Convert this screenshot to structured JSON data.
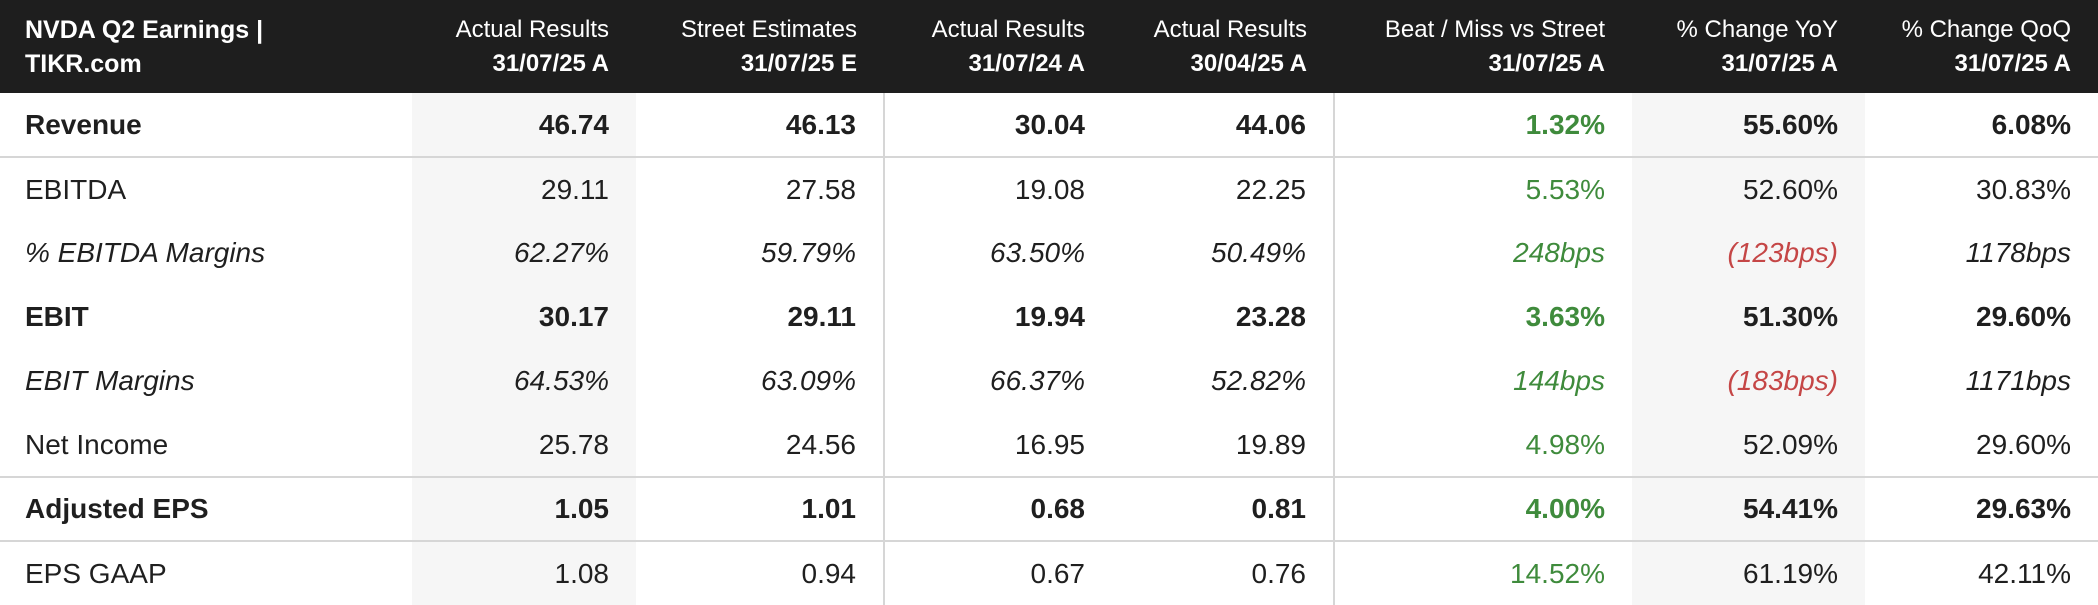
{
  "header": {
    "title": "NVDA Q2 Earnings | TIKR.com",
    "columns": [
      {
        "label": "Actual Results",
        "date": "31/07/25 A"
      },
      {
        "label": "Street Estimates",
        "date": "31/07/25 E"
      },
      {
        "label": "Actual Results",
        "date": "31/07/24 A"
      },
      {
        "label": "Actual Results",
        "date": "30/04/25 A"
      },
      {
        "label": "Beat / Miss vs Street",
        "date": "31/07/25 A"
      },
      {
        "label": "% Change YoY",
        "date": "31/07/25 A"
      },
      {
        "label": "% Change QoQ",
        "date": "31/07/25 A"
      }
    ]
  },
  "rows": [
    {
      "label": "Revenue",
      "values": [
        "46.74",
        "46.13",
        "30.04",
        "44.06",
        "1.32%",
        "55.60%",
        "6.08%"
      ]
    },
    {
      "label": "EBITDA",
      "values": [
        "29.11",
        "27.58",
        "19.08",
        "22.25",
        "5.53%",
        "52.60%",
        "30.83%"
      ]
    },
    {
      "label": "% EBITDA Margins",
      "values": [
        "62.27%",
        "59.79%",
        "63.50%",
        "50.49%",
        "248bps",
        "(123bps)",
        "1178bps"
      ]
    },
    {
      "label": "EBIT",
      "values": [
        "30.17",
        "29.11",
        "19.94",
        "23.28",
        "3.63%",
        "51.30%",
        "29.60%"
      ]
    },
    {
      "label": "EBIT Margins",
      "values": [
        "64.53%",
        "63.09%",
        "66.37%",
        "52.82%",
        "144bps",
        "(183bps)",
        "1171bps"
      ]
    },
    {
      "label": "Net Income",
      "values": [
        "25.78",
        "24.56",
        "16.95",
        "19.89",
        "4.98%",
        "52.09%",
        "29.60%"
      ]
    },
    {
      "label": "Adjusted EPS",
      "values": [
        "1.05",
        "1.01",
        "0.68",
        "0.81",
        "4.00%",
        "54.41%",
        "29.63%"
      ]
    },
    {
      "label": "EPS GAAP",
      "values": [
        "1.08",
        "0.94",
        "0.67",
        "0.76",
        "14.52%",
        "61.19%",
        "42.11%"
      ]
    }
  ],
  "colors": {
    "header_bg": "#1e1e1e",
    "beat_green": "#3f8b3c",
    "negative_red": "#c54646",
    "shade": "#f6f6f6",
    "divider": "#d6d6d6"
  }
}
